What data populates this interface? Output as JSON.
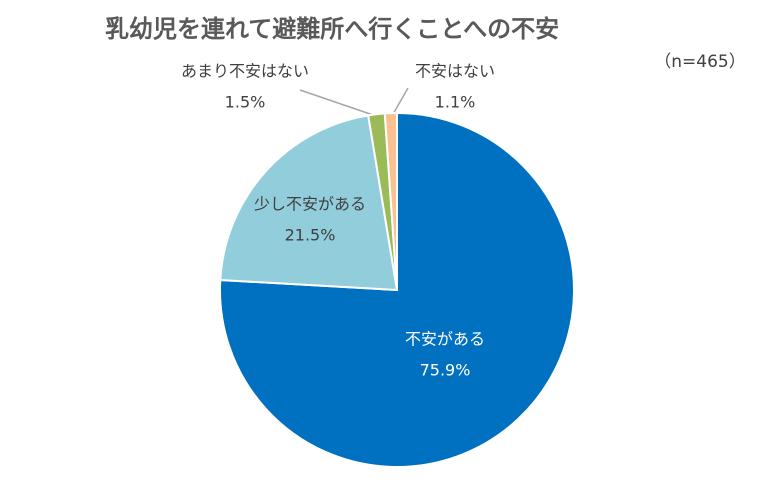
{
  "chart_data": {
    "type": "pie",
    "title": "乳幼児を連れて避難所へ行くことへの不安",
    "subtitle": "（n=465）",
    "categories": [
      "不安がある",
      "少し不安がある",
      "あまり不安はない",
      "不安はない"
    ],
    "values": [
      75.9,
      21.5,
      1.5,
      1.1
    ],
    "value_labels": [
      "75.9%",
      "21.5%",
      "1.5%",
      "1.1%"
    ],
    "colors": [
      "#0070c0",
      "#92cddc",
      "#9bbb59",
      "#fac090"
    ]
  }
}
